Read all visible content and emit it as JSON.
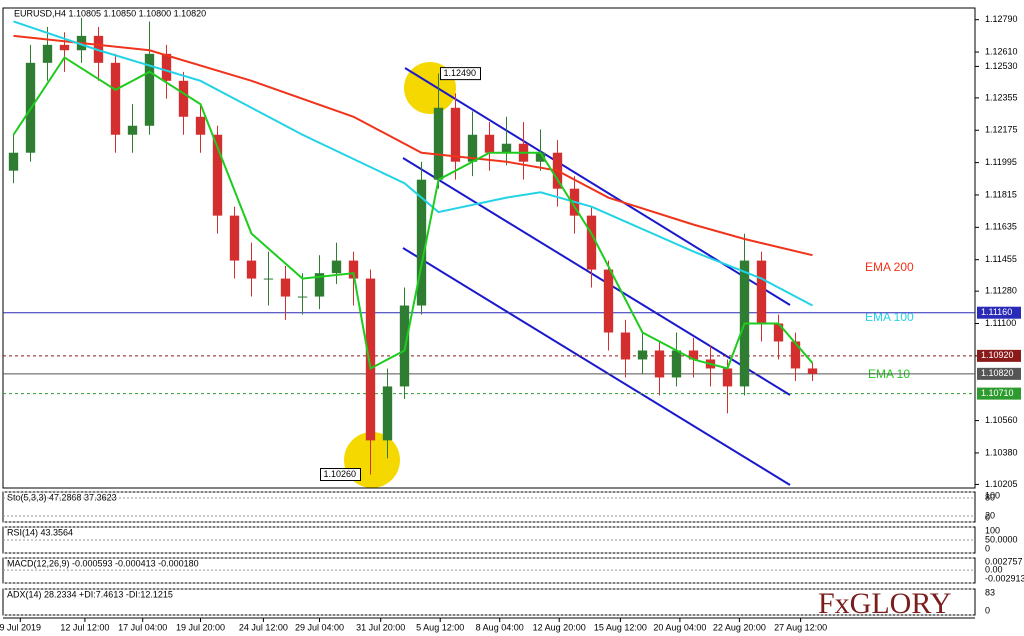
{
  "chart_data": {
    "type": "candlestick",
    "title": "EURUSD,H4  1.10805 1.10850 1.10800 1.10820",
    "x": [
      0,
      1,
      2,
      3,
      4,
      5,
      6,
      7,
      8,
      9,
      10,
      11,
      12,
      13,
      14,
      15,
      16,
      17,
      18,
      19,
      20,
      21,
      22,
      23,
      24,
      25,
      26,
      27,
      28,
      29,
      30,
      31,
      32,
      33,
      34,
      35,
      36,
      37,
      38,
      39,
      40,
      41,
      42,
      43,
      44,
      45,
      46,
      47
    ],
    "open": [
      1.1195,
      1.1205,
      1.1255,
      1.1265,
      1.1262,
      1.127,
      1.1255,
      1.1215,
      1.122,
      1.126,
      1.1245,
      1.1225,
      1.1215,
      1.117,
      1.1145,
      1.1135,
      1.1135,
      1.1125,
      1.1125,
      1.1138,
      1.1145,
      1.1135,
      1.1045,
      1.1075,
      1.112,
      1.119,
      1.123,
      1.12,
      1.1215,
      1.1205,
      1.121,
      1.12,
      1.1205,
      1.1185,
      1.117,
      1.114,
      1.1105,
      1.109,
      1.1095,
      1.108,
      1.1095,
      1.109,
      1.1085,
      1.1075,
      1.1145,
      1.111,
      1.11,
      1.1085
    ],
    "high": [
      1.1215,
      1.1265,
      1.1275,
      1.1272,
      1.128,
      1.1275,
      1.126,
      1.1232,
      1.1278,
      1.1265,
      1.125,
      1.1232,
      1.122,
      1.1175,
      1.1155,
      1.115,
      1.1142,
      1.1138,
      1.1148,
      1.1155,
      1.115,
      1.114,
      1.1085,
      1.113,
      1.12,
      1.1249,
      1.1238,
      1.1228,
      1.1222,
      1.1225,
      1.1222,
      1.1218,
      1.1212,
      1.1192,
      1.1175,
      1.1145,
      1.1112,
      1.1105,
      1.11,
      1.1105,
      1.1102,
      1.1098,
      1.109,
      1.116,
      1.115,
      1.1115,
      1.1105,
      1.1088
    ],
    "low": [
      1.1188,
      1.12,
      1.1245,
      1.125,
      1.1255,
      1.1245,
      1.1205,
      1.1205,
      1.1215,
      1.1235,
      1.1215,
      1.1205,
      1.116,
      1.1135,
      1.1125,
      1.112,
      1.1112,
      1.1115,
      1.1118,
      1.1132,
      1.112,
      1.1026,
      1.1035,
      1.1068,
      1.1115,
      1.1185,
      1.119,
      1.1192,
      1.1195,
      1.1198,
      1.119,
      1.1195,
      1.1175,
      1.116,
      1.113,
      1.1095,
      1.108,
      1.1082,
      1.107,
      1.1075,
      1.108,
      1.1075,
      1.106,
      1.107,
      1.11,
      1.109,
      1.1078,
      1.1078
    ],
    "close": [
      1.1205,
      1.1255,
      1.1265,
      1.1262,
      1.127,
      1.1255,
      1.1215,
      1.122,
      1.126,
      1.1245,
      1.1225,
      1.1215,
      1.117,
      1.1145,
      1.1135,
      1.1135,
      1.1125,
      1.1125,
      1.1138,
      1.1145,
      1.1135,
      1.1045,
      1.1075,
      1.112,
      1.119,
      1.123,
      1.12,
      1.1215,
      1.1205,
      1.121,
      1.12,
      1.1205,
      1.1185,
      1.117,
      1.114,
      1.1105,
      1.109,
      1.1095,
      1.108,
      1.1095,
      1.109,
      1.1085,
      1.1075,
      1.1145,
      1.111,
      1.11,
      1.1085,
      1.1082
    ],
    "up_color": "#2e7d32",
    "down_color": "#d32f2f",
    "series": [
      {
        "name": "EMA 200",
        "color": "#f0341c",
        "x": [
          0,
          8,
          14,
          20,
          24,
          29,
          32,
          35,
          40,
          43,
          47
        ],
        "values": [
          1.127,
          1.1262,
          1.1245,
          1.1225,
          1.1205,
          1.12,
          1.1195,
          1.118,
          1.1165,
          1.1157,
          1.1148
        ]
      },
      {
        "name": "EMA 100",
        "color": "#22d3e6",
        "x": [
          0,
          5,
          11,
          17,
          23,
          25,
          29,
          31,
          34,
          40,
          44,
          47
        ],
        "values": [
          1.1278,
          1.1262,
          1.1245,
          1.1215,
          1.1188,
          1.1172,
          1.118,
          1.1183,
          1.1175,
          1.115,
          1.1135,
          1.112
        ]
      },
      {
        "name": "EMA 10",
        "color": "#1ecb1e",
        "x": [
          0,
          3,
          6,
          8,
          11,
          14,
          17,
          20,
          21,
          23,
          25,
          28,
          31,
          34,
          37,
          40,
          42,
          43,
          45,
          47
        ],
        "values": [
          1.1215,
          1.1258,
          1.124,
          1.125,
          1.1232,
          1.116,
          1.1135,
          1.1138,
          1.1085,
          1.1095,
          1.119,
          1.1205,
          1.1205,
          1.116,
          1.1105,
          1.109,
          1.1085,
          1.111,
          1.111,
          1.1088
        ]
      }
    ],
    "xlim": [
      -0.5,
      47.5
    ],
    "ylim": [
      1.10185,
      1.12855
    ],
    "yticks": [
      {
        "value": 1.1279,
        "label": "1.12790"
      },
      {
        "value": 1.1261,
        "label": "1.12610"
      },
      {
        "value": 1.1253,
        "label": "1.12530"
      },
      {
        "value": 1.12355,
        "label": "1.12355"
      },
      {
        "value": 1.12175,
        "label": "1.12175"
      },
      {
        "value": 1.11995,
        "label": "1.11995"
      },
      {
        "value": 1.11815,
        "label": "1.11815"
      },
      {
        "value": 1.11635,
        "label": "1.11635"
      },
      {
        "value": 1.11455,
        "label": "1.11455"
      },
      {
        "value": 1.1128,
        "label": "1.11280"
      },
      {
        "value": 1.111,
        "label": "1.11100"
      },
      {
        "value": 1.1092,
        "label": "1.10920"
      },
      {
        "value": 1.1056,
        "label": "1.10560"
      },
      {
        "value": 1.1038,
        "label": "1.10380"
      },
      {
        "value": 1.10205,
        "label": "1.10205"
      }
    ],
    "xticks": [
      {
        "value": 0.4,
        "label": "9 Jul 2019"
      },
      {
        "value": 4.2,
        "label": "12 Jul 12:00"
      },
      {
        "value": 7.6,
        "label": "17 Jul 04:00"
      },
      {
        "value": 11,
        "label": "19 Jul 20:00"
      },
      {
        "value": 14.7,
        "label": "24 Jul 12:00"
      },
      {
        "value": 18,
        "label": "29 Jul 04:00"
      },
      {
        "value": 21.6,
        "label": "31 Jul 20:00"
      },
      {
        "value": 25.1,
        "label": "5 Aug 12:00"
      },
      {
        "value": 28.6,
        "label": "8 Aug 04:00"
      },
      {
        "value": 32.1,
        "label": "12 Aug 20:00"
      },
      {
        "value": 35.7,
        "label": "15 Aug 12:00"
      },
      {
        "value": 39.2,
        "label": "20 Aug 04:00"
      },
      {
        "value": 42.7,
        "label": "22 Aug 20:00"
      },
      {
        "value": 46.3,
        "label": "27 Aug 12:00"
      }
    ],
    "hlines": [
      {
        "value": 1.1116,
        "label": "1.11160",
        "color": "#2a2ab8",
        "dashed": false
      },
      {
        "value": 1.1092,
        "label": "1.10920",
        "color": "#8b1a1a",
        "dashed": true
      },
      {
        "value": 1.1082,
        "label": "1.10820",
        "color": "#555555",
        "dashed": false
      },
      {
        "value": 1.1071,
        "label": "1.10710",
        "color": "#2e9b2e",
        "dashed": true
      }
    ],
    "annotations": [
      {
        "x": 25,
        "value": 1.1249,
        "label": "1.12490"
      },
      {
        "x": 21,
        "value": 1.1026,
        "label": "1.10260"
      }
    ]
  },
  "indicators": [
    {
      "label": "Sto(5,3,3) 47.2868 37.3623",
      "ylim": [
        0,
        100
      ],
      "ticks": [
        100,
        80,
        20,
        0
      ]
    },
    {
      "label": "RSI(14) 43.3564",
      "ylim": [
        0,
        100
      ],
      "ticks": [
        100,
        {
          "value": 50,
          "label": "50.0000"
        },
        0
      ]
    },
    {
      "label": "MACD(12,26,9) -0.000593 -0.000413 -0.000180",
      "ylim": [
        -0.002913,
        0.002757
      ],
      "ticks": [
        0.002757,
        {
          "value": 0,
          "label": "0.00"
        },
        -0.002913
      ]
    },
    {
      "label": "ADX(14) 28.2334 +DI:7.4613 -DI:12.1215",
      "ylim": [
        0,
        83
      ],
      "ticks": [
        83,
        0
      ]
    }
  ],
  "logo": "FxGLORY"
}
